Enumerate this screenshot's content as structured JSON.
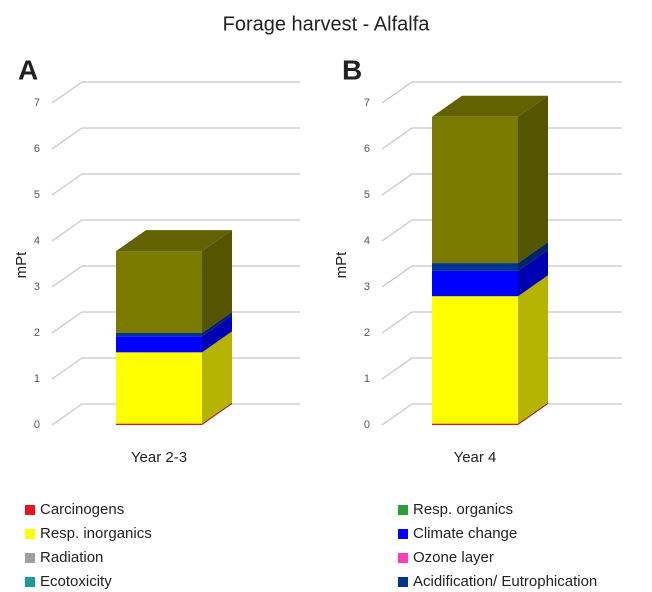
{
  "title": "Forage harvest - Alfalfa",
  "chart_data": [
    {
      "type": "bar",
      "stacked": true,
      "label": "A",
      "ylabel": "mPt",
      "categories": [
        "Year 2-3"
      ],
      "ylim": [
        0,
        7
      ],
      "yticks": [
        0,
        1,
        2,
        3,
        4,
        5,
        6,
        7
      ],
      "grid": true,
      "series": [
        {
          "name": "Carcinogens",
          "color": "#e8141c",
          "values": [
            0.03
          ]
        },
        {
          "name": "Resp. organics",
          "color": "#2e9e3a",
          "values": [
            0
          ]
        },
        {
          "name": "Resp. inorganics",
          "color": "#ffff00",
          "values": [
            1.55
          ]
        },
        {
          "name": "Climate change",
          "color": "#0000ff",
          "values": [
            0.35
          ]
        },
        {
          "name": "Radiation",
          "color": "#a0a0a0",
          "values": [
            0
          ]
        },
        {
          "name": "Ozone layer",
          "color": "#ff3eb5",
          "values": [
            0
          ]
        },
        {
          "name": "Ecotoxicity",
          "color": "#1a9a9a",
          "values": [
            0
          ]
        },
        {
          "name": "Acidification/ Eutrophication",
          "color": "#00358f",
          "values": [
            0.07
          ]
        },
        {
          "color": "#7a7a00",
          "values": [
            1.78
          ]
        }
      ]
    },
    {
      "type": "bar",
      "stacked": true,
      "label": "B",
      "ylabel": "mPt",
      "categories": [
        "Year 4"
      ],
      "ylim": [
        0,
        7
      ],
      "yticks": [
        0,
        1,
        2,
        3,
        4,
        5,
        6,
        7
      ],
      "grid": true,
      "series": [
        {
          "name": "Carcinogens",
          "color": "#e8141c",
          "values": [
            0.03
          ]
        },
        {
          "name": "Resp. organics",
          "color": "#2e9e3a",
          "values": [
            0
          ]
        },
        {
          "name": "Resp. inorganics",
          "color": "#ffff00",
          "values": [
            2.77
          ]
        },
        {
          "name": "Climate change",
          "color": "#0000ff",
          "values": [
            0.55
          ]
        },
        {
          "name": "Radiation",
          "color": "#a0a0a0",
          "values": [
            0
          ]
        },
        {
          "name": "Ozone layer",
          "color": "#ff3eb5",
          "values": [
            0
          ]
        },
        {
          "name": "Ecotoxicity",
          "color": "#1a9a9a",
          "values": [
            0
          ]
        },
        {
          "name": "Acidification/ Eutrophication",
          "color": "#00358f",
          "values": [
            0.17
          ]
        },
        {
          "color": "#7a7a00",
          "values": [
            3.18
          ]
        }
      ]
    }
  ]
}
